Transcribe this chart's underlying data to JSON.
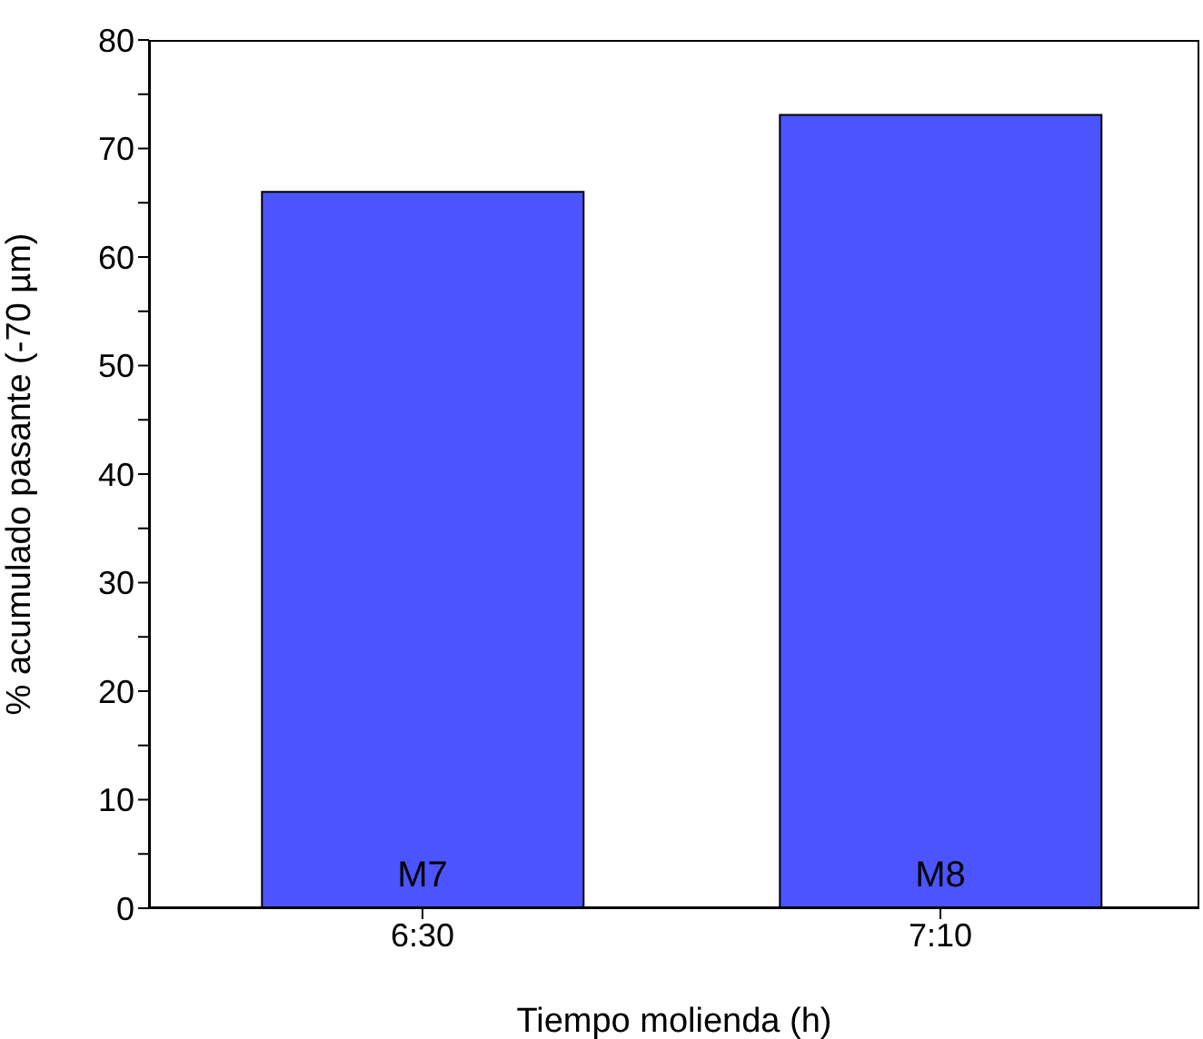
{
  "chart_data": {
    "type": "bar",
    "xlabel": "Tiempo molienda (h)",
    "ylabel": "% acumulado pasante (-70 µm)",
    "categories": [
      "6:30",
      "7:10"
    ],
    "values": [
      66,
      73.1
    ],
    "color": "#4c54ff",
    "ylim": [
      0,
      80
    ],
    "yticks": [
      0,
      {
        "value": 5,
        "label": null
      },
      10,
      {
        "value": 15,
        "label": null
      },
      20,
      {
        "value": 25,
        "label": null
      },
      30,
      {
        "value": 35,
        "label": null
      },
      40,
      {
        "value": 45,
        "label": null
      },
      50,
      {
        "value": 55,
        "label": null
      },
      60,
      {
        "value": 65,
        "label": null
      },
      70,
      {
        "value": 75,
        "label": null
      },
      80
    ],
    "annotations": [
      "M7",
      "M8"
    ],
    "grid": false,
    "legend": false
  }
}
